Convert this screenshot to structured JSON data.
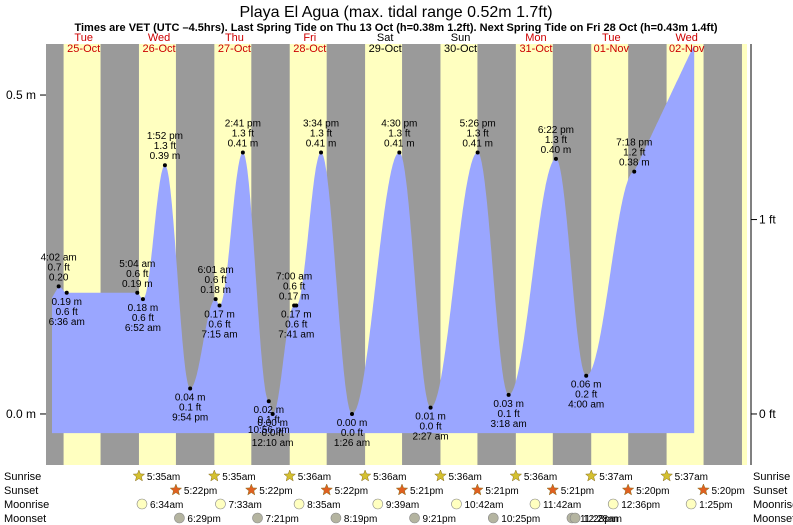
{
  "chart_data": {
    "type": "area",
    "title": "Playa El Agua (max. tidal range 0.52m 1.7ft)",
    "subtitle": "Times are VET (UTC –4.5hrs). Last Spring Tide on Thu 13 Oct (h=0.38m 1.2ft). Next Spring Tide on Fri 28 Oct (h=0.43m 1.4ft)",
    "days": [
      {
        "dow": "Tue",
        "date": "25-Oct",
        "weekend": false
      },
      {
        "dow": "Wed",
        "date": "26-Oct",
        "weekend": false
      },
      {
        "dow": "Thu",
        "date": "27-Oct",
        "weekend": false
      },
      {
        "dow": "Fri",
        "date": "28-Oct",
        "weekend": false
      },
      {
        "dow": "Sat",
        "date": "29-Oct",
        "weekend": true
      },
      {
        "dow": "Sun",
        "date": "30-Oct",
        "weekend": true
      },
      {
        "dow": "Mon",
        "date": "31-Oct",
        "weekend": false
      },
      {
        "dow": "Tue",
        "date": "01-Nov",
        "weekend": false
      },
      {
        "dow": "Wed",
        "date": "02-Nov",
        "weekend": false
      }
    ],
    "y_left_ticks": [
      {
        "v": 0.0,
        "label": "0.0 m"
      },
      {
        "v": 0.5,
        "label": "0.5 m"
      }
    ],
    "y_right_ticks": [
      {
        "v": 0.0,
        "label": "0 ft"
      },
      {
        "v": 0.3048,
        "label": "1 ft"
      }
    ],
    "ylim": [
      -0.08,
      0.58
    ],
    "x_days_range": [
      0,
      9.3
    ],
    "sunrise_hour": 5.6,
    "sunset_hour": 17.37,
    "tides": [
      {
        "type": "high",
        "day": 0,
        "time": "4:02 am",
        "m": "0.20",
        "ft": "0.7 ft",
        "mval": 0.2
      },
      {
        "type": "low",
        "day": 0,
        "time": "6:36 am",
        "m": "0.19 m",
        "ft": "0.6 ft",
        "mval": 0.19
      },
      {
        "type": "high",
        "day": 1,
        "time": "1:52 pm",
        "m": "0.39 m",
        "ft": "1.3 ft",
        "mval": 0.39
      },
      {
        "type": "low",
        "day": 1,
        "time": "9:54 pm",
        "m": "0.04 m",
        "ft": "0.1 ft",
        "mval": 0.04
      },
      {
        "type": "high",
        "day": 1,
        "time": "5:04 am",
        "m": "0.19 m",
        "ft": "0.6 ft",
        "mval": 0.19
      },
      {
        "type": "low",
        "day": 1,
        "time": "6:52 am",
        "m": "0.18 m",
        "ft": "0.6 ft",
        "mval": 0.18
      },
      {
        "type": "high",
        "day": 2,
        "time": "2:41 pm",
        "m": "0.41 m",
        "ft": "1.3 ft",
        "mval": 0.41
      },
      {
        "type": "low",
        "day": 2,
        "time": "10:56 pm",
        "m": "0.02 m",
        "ft": "0.1 ft",
        "mval": 0.02
      },
      {
        "type": "high",
        "day": 2,
        "time": "6:01 am",
        "m": "0.18 m",
        "ft": "0.6 ft",
        "mval": 0.18
      },
      {
        "type": "low",
        "day": 2,
        "time": "7:15 am",
        "m": "0.17 m",
        "ft": "0.6 ft",
        "mval": 0.17
      },
      {
        "type": "high",
        "day": 3,
        "time": "3:34 pm",
        "m": "0.41 m",
        "ft": "1.3 ft",
        "mval": 0.41
      },
      {
        "type": "low",
        "day": 3,
        "time": "12:10 am",
        "m": "0.00 m",
        "ft": "0.0 ft",
        "mval": 0.0
      },
      {
        "type": "high",
        "day": 3,
        "time": "7:00 am",
        "m": "0.17 m",
        "ft": "0.6 ft",
        "mval": 0.17
      },
      {
        "type": "low",
        "day": 3,
        "time": "7:41 am",
        "m": "0.17 m",
        "ft": "0.6 ft",
        "mval": 0.17
      },
      {
        "type": "high",
        "day": 4,
        "time": "4:30 pm",
        "m": "0.41 m",
        "ft": "1.3 ft",
        "mval": 0.41
      },
      {
        "type": "low",
        "day": 4,
        "time": "1:26 am",
        "m": "0.00 m",
        "ft": "0.0 ft",
        "mval": 0.0
      },
      {
        "type": "high",
        "day": 5,
        "time": "5:26 pm",
        "m": "0.41 m",
        "ft": "1.3 ft",
        "mval": 0.41
      },
      {
        "type": "low",
        "day": 5,
        "time": "2:27 am",
        "m": "0.01 m",
        "ft": "0.0 ft",
        "mval": 0.01
      },
      {
        "type": "high",
        "day": 6,
        "time": "6:22 pm",
        "m": "0.40 m",
        "ft": "1.3 ft",
        "mval": 0.4
      },
      {
        "type": "low",
        "day": 6,
        "time": "3:18 am",
        "m": "0.03 m",
        "ft": "0.1 ft",
        "mval": 0.03
      },
      {
        "type": "high",
        "day": 7,
        "time": "7:18 pm",
        "m": "0.38 m",
        "ft": "1.2 ft",
        "mval": 0.38
      },
      {
        "type": "low",
        "day": 7,
        "time": "4:00 am",
        "m": "0.06 m",
        "ft": "0.2 ft",
        "mval": 0.06
      }
    ],
    "bottom_rows": [
      {
        "label": "Sunrise",
        "items": [
          "5:35am",
          "5:35am",
          "5:36am",
          "5:36am",
          "5:36am",
          "5:36am",
          "5:37am",
          "5:37am"
        ]
      },
      {
        "label": "Sunset",
        "items": [
          "5:22pm",
          "5:22pm",
          "5:22pm",
          "5:21pm",
          "5:21pm",
          "5:21pm",
          "5:20pm",
          "5:20pm"
        ]
      },
      {
        "label": "Moonrise",
        "items": [
          "6:34am",
          "7:33am",
          "8:35am",
          "9:39am",
          "10:42am",
          "11:42am",
          "12:36pm",
          "1:25pm"
        ]
      },
      {
        "label": "Moonset",
        "items": [
          "6:29pm",
          "7:21pm",
          "8:19pm",
          "9:21pm",
          "10:25pm",
          "11:28pm",
          "12:28am"
        ]
      }
    ],
    "colors": {
      "night": "#9a9a9a",
      "day": "#ffffc0",
      "tide": "#9aa6ff",
      "weekend_label": "#cc0000",
      "weekday_label": "#000000",
      "sun_star": "#d4c030",
      "sunset_star": "#e06020",
      "moon": "#ffffc0",
      "moonset": "#b4b4a0"
    }
  }
}
